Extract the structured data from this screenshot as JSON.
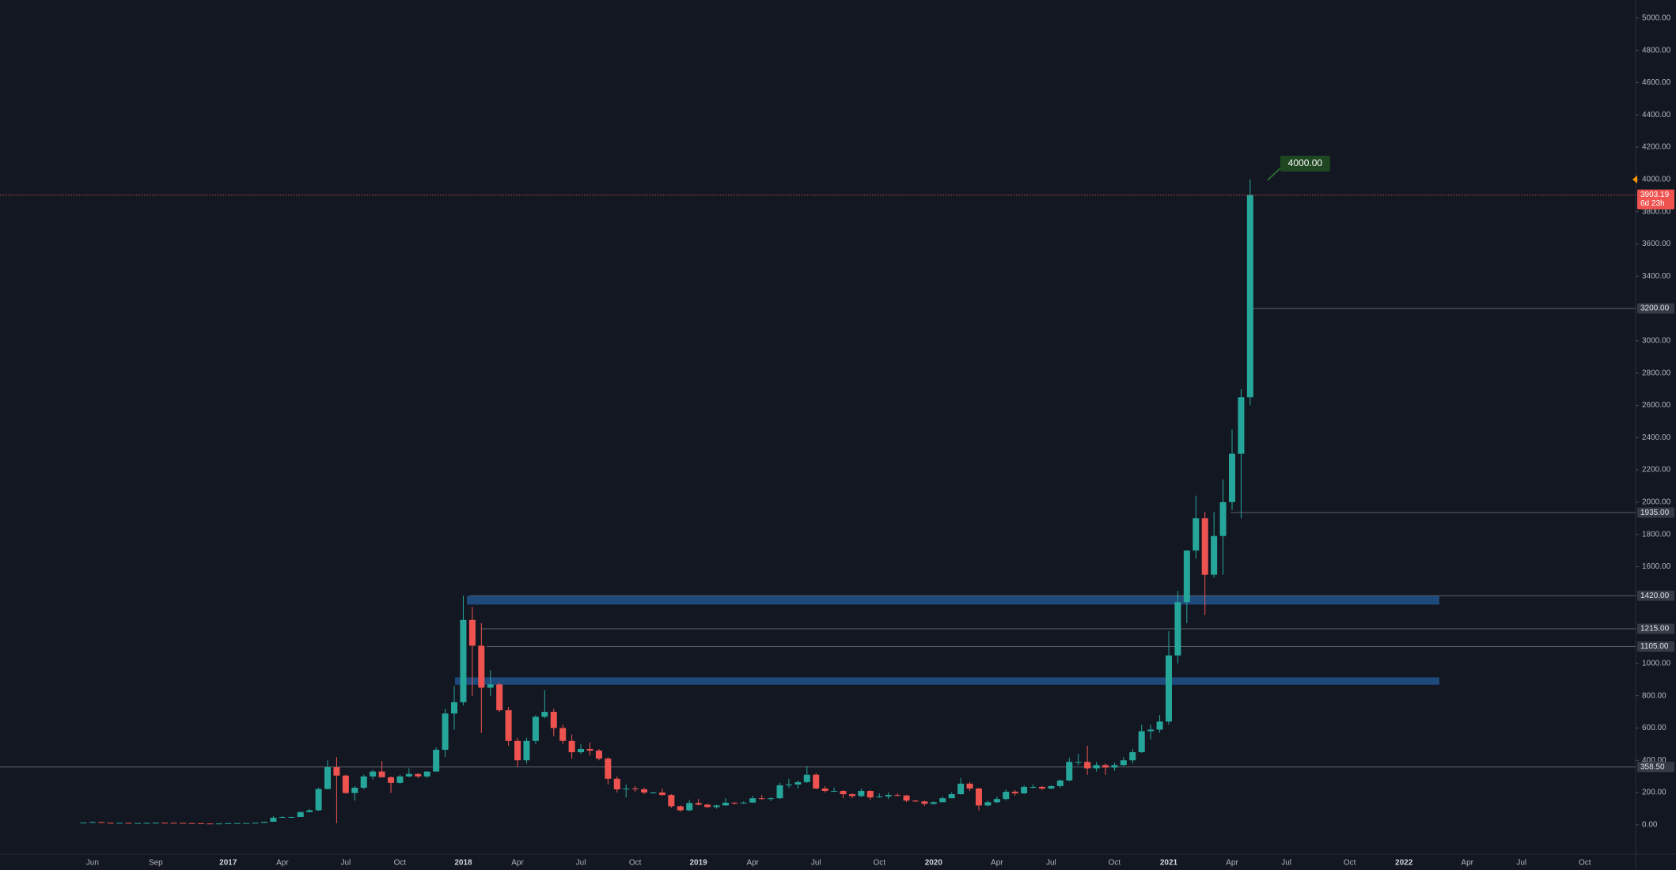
{
  "chart_data": {
    "type": "candlestick",
    "categories": [
      null,
      "Jun",
      null,
      null,
      null,
      null,
      null,
      null,
      "Sep",
      null,
      null,
      null,
      null,
      null,
      null,
      null,
      "2017",
      null,
      null,
      null,
      null,
      null,
      "Apr",
      null,
      null,
      null,
      null,
      null,
      null,
      "Jul",
      null,
      null,
      null,
      null,
      null,
      "Oct",
      null,
      null,
      null,
      null,
      null,
      null,
      "2018",
      null,
      null,
      null,
      null,
      null,
      "Apr",
      null,
      null,
      null,
      null,
      null,
      null,
      "Jul",
      null,
      null,
      null,
      null,
      null,
      "Oct",
      null,
      null,
      null,
      null,
      null,
      null,
      "2019",
      null,
      null,
      null,
      null,
      null,
      "Apr",
      null,
      null,
      null,
      null,
      null,
      null,
      "Jul",
      null,
      null,
      null,
      null,
      null,
      null,
      "Oct",
      null,
      null,
      null,
      null,
      null,
      "2020",
      null,
      null,
      null,
      null,
      null,
      null,
      "Apr",
      null,
      null,
      null,
      null,
      null,
      "Jul",
      null,
      null,
      null,
      null,
      null,
      null,
      "Oct",
      null,
      null,
      null,
      null,
      null,
      "2021",
      null,
      null,
      null,
      null,
      null,
      null,
      "Apr",
      null,
      null,
      null,
      null,
      null,
      "Jul",
      null,
      null,
      null,
      null,
      null,
      null,
      "Oct",
      null,
      null,
      null,
      null,
      null,
      "2022",
      null,
      null,
      null,
      null,
      null,
      null,
      "Apr",
      null,
      null,
      null,
      null,
      null,
      "Jul",
      null,
      null,
      null,
      null,
      null,
      null,
      "Oct",
      null
    ],
    "ohlc": [
      [
        12.5,
        14.5,
        12,
        14
      ],
      [
        14,
        21,
        13.5,
        17.5
      ],
      [
        17.5,
        17.8,
        10,
        12.5
      ],
      [
        12.5,
        14,
        10,
        11.5
      ],
      [
        11.5,
        14,
        11,
        12.5
      ],
      [
        12.5,
        12.7,
        8,
        11
      ],
      [
        11,
        11.5,
        10.5,
        11.1
      ],
      [
        11.1,
        12.5,
        10.9,
        12
      ],
      [
        12,
        13.2,
        11.8,
        12.9
      ],
      [
        12.9,
        13.4,
        11.8,
        12.4
      ],
      [
        12.4,
        12.6,
        11.4,
        11.8
      ],
      [
        11.8,
        12,
        10.5,
        10.8
      ],
      [
        10.8,
        11.2,
        9.4,
        9.8
      ],
      [
        9.8,
        9.9,
        7.8,
        8.2
      ],
      [
        8.2,
        8.7,
        6.3,
        7.8
      ],
      [
        7.8,
        8.4,
        7,
        8.1
      ],
      [
        8.1,
        11.2,
        7.9,
        10
      ],
      [
        10,
        11,
        9.8,
        10.6
      ],
      [
        10.6,
        11.9,
        10.4,
        11.3
      ],
      [
        11.3,
        13.5,
        11.2,
        13
      ],
      [
        13,
        19.5,
        12.8,
        19
      ],
      [
        19,
        55,
        18.5,
        44
      ],
      [
        44,
        53,
        43,
        48
      ],
      [
        48,
        50,
        45,
        48.5
      ],
      [
        48.5,
        81,
        48,
        79
      ],
      [
        79,
        98,
        77,
        90
      ],
      [
        90,
        230,
        85,
        222
      ],
      [
        222,
        400,
        220,
        357
      ],
      [
        357,
        420,
        10,
        305
      ],
      [
        305,
        310,
        192,
        197
      ],
      [
        197,
        240,
        150,
        230
      ],
      [
        230,
        310,
        220,
        300
      ],
      [
        300,
        340,
        280,
        330
      ],
      [
        330,
        395,
        320,
        295
      ],
      [
        295,
        300,
        197,
        260
      ],
      [
        260,
        310,
        255,
        300
      ],
      [
        300,
        350,
        295,
        315
      ],
      [
        315,
        320,
        290,
        300
      ],
      [
        300,
        330,
        290,
        330
      ],
      [
        330,
        480,
        330,
        465
      ],
      [
        465,
        720,
        420,
        690
      ],
      [
        690,
        860,
        590,
        760
      ],
      [
        760,
        1420,
        740,
        1270
      ],
      [
        1270,
        1350,
        800,
        1110
      ],
      [
        1110,
        1250,
        570,
        850
      ],
      [
        850,
        960,
        800,
        870
      ],
      [
        870,
        880,
        700,
        710
      ],
      [
        710,
        730,
        490,
        520
      ],
      [
        520,
        540,
        360,
        400
      ],
      [
        400,
        540,
        380,
        520
      ],
      [
        520,
        680,
        500,
        670
      ],
      [
        670,
        835,
        660,
        700
      ],
      [
        700,
        720,
        550,
        600
      ],
      [
        600,
        620,
        500,
        520
      ],
      [
        520,
        560,
        410,
        450
      ],
      [
        450,
        500,
        440,
        470
      ],
      [
        470,
        510,
        430,
        460
      ],
      [
        460,
        470,
        400,
        410
      ],
      [
        410,
        420,
        250,
        285
      ],
      [
        285,
        300,
        200,
        220
      ],
      [
        220,
        250,
        170,
        225
      ],
      [
        225,
        240,
        205,
        220
      ],
      [
        220,
        230,
        190,
        200
      ],
      [
        200,
        205,
        195,
        200
      ],
      [
        200,
        225,
        180,
        185
      ],
      [
        185,
        190,
        105,
        115
      ],
      [
        115,
        120,
        82,
        90
      ],
      [
        90,
        155,
        85,
        135
      ],
      [
        135,
        160,
        120,
        125
      ],
      [
        125,
        130,
        105,
        110
      ],
      [
        110,
        125,
        100,
        120
      ],
      [
        120,
        165,
        118,
        137
      ],
      [
        137,
        140,
        125,
        135
      ],
      [
        135,
        145,
        130,
        138
      ],
      [
        138,
        180,
        136,
        165
      ],
      [
        165,
        185,
        155,
        160
      ],
      [
        160,
        170,
        148,
        165
      ],
      [
        165,
        260,
        160,
        245
      ],
      [
        245,
        285,
        230,
        250
      ],
      [
        250,
        275,
        225,
        265
      ],
      [
        265,
        365,
        260,
        310
      ],
      [
        310,
        320,
        220,
        225
      ],
      [
        225,
        240,
        200,
        210
      ],
      [
        210,
        230,
        205,
        210
      ],
      [
        210,
        215,
        165,
        190
      ],
      [
        190,
        195,
        165,
        178
      ],
      [
        178,
        225,
        172,
        210
      ],
      [
        210,
        215,
        155,
        170
      ],
      [
        170,
        195,
        168,
        175
      ],
      [
        175,
        200,
        160,
        185
      ],
      [
        185,
        195,
        175,
        182
      ],
      [
        182,
        185,
        140,
        150
      ],
      [
        150,
        155,
        140,
        145
      ],
      [
        145,
        150,
        117,
        130
      ],
      [
        130,
        145,
        125,
        140
      ],
      [
        140,
        175,
        140,
        165
      ],
      [
        165,
        200,
        165,
        190
      ],
      [
        190,
        290,
        188,
        255
      ],
      [
        255,
        265,
        210,
        225
      ],
      [
        225,
        230,
        90,
        120
      ],
      [
        120,
        150,
        115,
        140
      ],
      [
        140,
        175,
        135,
        160
      ],
      [
        160,
        220,
        150,
        205
      ],
      [
        205,
        215,
        180,
        195
      ],
      [
        195,
        245,
        190,
        235
      ],
      [
        235,
        250,
        225,
        235
      ],
      [
        235,
        240,
        215,
        225
      ],
      [
        225,
        245,
        220,
        240
      ],
      [
        240,
        280,
        230,
        275
      ],
      [
        275,
        415,
        270,
        390
      ],
      [
        390,
        440,
        370,
        390
      ],
      [
        390,
        490,
        310,
        350
      ],
      [
        350,
        390,
        330,
        370
      ],
      [
        370,
        380,
        310,
        355
      ],
      [
        355,
        385,
        335,
        370
      ],
      [
        370,
        420,
        365,
        400
      ],
      [
        400,
        470,
        380,
        450
      ],
      [
        450,
        620,
        445,
        580
      ],
      [
        580,
        620,
        530,
        590
      ],
      [
        590,
        680,
        570,
        640
      ],
      [
        640,
        1200,
        620,
        1050
      ],
      [
        1050,
        1450,
        1000,
        1380
      ],
      [
        1380,
        1700,
        1250,
        1700
      ],
      [
        1700,
        2040,
        1650,
        1900
      ],
      [
        1900,
        1940,
        1300,
        1550
      ],
      [
        1550,
        1940,
        1530,
        1790
      ],
      [
        1790,
        2140,
        1550,
        2000
      ],
      [
        2000,
        2450,
        1950,
        2300
      ],
      [
        2300,
        2700,
        1900,
        2650
      ],
      [
        2650,
        4000,
        2600,
        3903.19
      ],
      null,
      null,
      null,
      null,
      null,
      null,
      null,
      null,
      null,
      null,
      null,
      null,
      null,
      null,
      null,
      null,
      null,
      null,
      null,
      null,
      null,
      null,
      null,
      null,
      null,
      null,
      null,
      null,
      null,
      null,
      null,
      null,
      null,
      null,
      null,
      null,
      null,
      null
    ],
    "up_color": "#26a69a",
    "down_color": "#ef5350",
    "ylim": [
      -182,
      5112
    ],
    "yticks": [
      {
        "value": 0,
        "label": "0.00"
      },
      {
        "value": 200,
        "label": "200.00"
      },
      {
        "value": 400,
        "label": "400.00"
      },
      {
        "value": 600,
        "label": "600.00"
      },
      {
        "value": 800,
        "label": "800.00"
      },
      {
        "value": 1000,
        "label": "1000.00"
      },
      {
        "value": 1600,
        "label": "1600.00"
      },
      {
        "value": 1800,
        "label": "1800.00"
      },
      {
        "value": 2000,
        "label": "2000.00"
      },
      {
        "value": 2200,
        "label": "2200.00"
      },
      {
        "value": 2400,
        "label": "2400.00"
      },
      {
        "value": 2600,
        "label": "2600.00"
      },
      {
        "value": 2800,
        "label": "2800.00"
      },
      {
        "value": 3000,
        "label": "3000.00"
      },
      {
        "value": 3400,
        "label": "3400.00"
      },
      {
        "value": 3600,
        "label": "3600.00"
      },
      {
        "value": 3800,
        "label": "3800.00"
      },
      {
        "value": 4000,
        "label": "4000.00"
      },
      {
        "value": 4200,
        "label": "4200.00"
      },
      {
        "value": 4400,
        "label": "4400.00"
      },
      {
        "value": 4600,
        "label": "4600.00"
      },
      {
        "value": 4800,
        "label": "4800.00"
      },
      {
        "value": 5000,
        "label": "5000.00"
      }
    ],
    "levels": [
      {
        "value": 3200,
        "label": "3200.00"
      },
      {
        "value": 1935,
        "label": "1935.00"
      },
      {
        "value": 1420,
        "label": "1420.00"
      },
      {
        "value": 1215,
        "label": "1215.00"
      },
      {
        "value": 1105,
        "label": "1105.00"
      },
      {
        "value": 358.5,
        "label": "358.50"
      }
    ],
    "zones": [
      {
        "low": 1365,
        "high": 1420
      },
      {
        "low": 868,
        "high": 914
      }
    ],
    "last_price": {
      "value": 3903.19,
      "label": "3903.19",
      "countdown": "6d 23h"
    },
    "annotation": {
      "value": 4000,
      "label": "4000.00"
    }
  }
}
